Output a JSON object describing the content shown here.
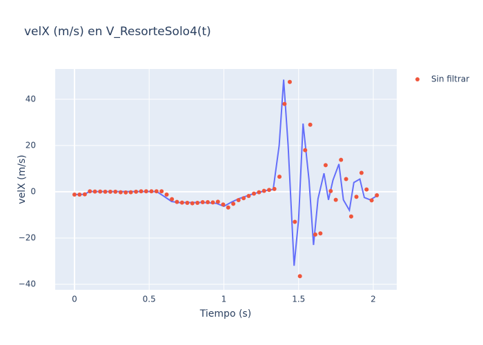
{
  "chart_data": {
    "type": "scatter",
    "title": "velX (m/s) en V_ResorteSolo4(t)",
    "x_label": "Tiempo (s)",
    "y_label": "velX (m/s)",
    "xlim": [
      -0.129,
      2.157
    ],
    "ylim": [
      -42.4,
      53.1
    ],
    "xticks": [
      0,
      0.5,
      1,
      1.5,
      2
    ],
    "yticks": [
      {
        "value": -40,
        "label": "−40"
      },
      {
        "value": -20,
        "label": "−20"
      },
      0,
      20,
      40
    ],
    "grid": true,
    "legend": "right",
    "series": [
      {
        "mode": "lines",
        "color": "#636efa",
        "x": [
          0,
          0.067,
          0.1,
          0.5,
          0.55,
          0.6,
          0.65,
          0.7,
          0.85,
          0.95,
          1.0,
          1.05,
          1.1,
          1.2,
          1.3,
          1.33,
          1.37,
          1.4,
          1.43,
          1.47,
          1.5,
          1.53,
          1.57,
          1.6,
          1.63,
          1.67,
          1.7,
          1.73,
          1.77,
          1.8,
          1.84,
          1.87,
          1.91,
          1.94,
          1.98,
          2.03
        ],
        "values": [
          -1.2,
          -1.1,
          0.1,
          0.1,
          0.1,
          -2,
          -4.2,
          -4.7,
          -4.6,
          -5,
          -6.3,
          -4.5,
          -3,
          -0.8,
          0.8,
          1,
          20,
          48.5,
          20,
          -32,
          -12,
          29.5,
          5,
          -23,
          -3,
          8,
          -3.5,
          5,
          12,
          -3.5,
          -8,
          4,
          5.5,
          -2.5,
          -3.5,
          -1.5
        ]
      },
      {
        "mode": "markers",
        "name": "Sin filtrar",
        "color": "#ef553b",
        "x": [
          0,
          0.034,
          0.069,
          0.103,
          0.137,
          0.172,
          0.206,
          0.24,
          0.274,
          0.309,
          0.343,
          0.377,
          0.412,
          0.446,
          0.48,
          0.515,
          0.549,
          0.583,
          0.617,
          0.652,
          0.686,
          0.72,
          0.755,
          0.789,
          0.823,
          0.858,
          0.892,
          0.926,
          0.96,
          0.995,
          1.029,
          1.063,
          1.098,
          1.132,
          1.166,
          1.201,
          1.235,
          1.269,
          1.303,
          1.338,
          1.372,
          1.406,
          1.441,
          1.475,
          1.509,
          1.544,
          1.578,
          1.612,
          1.646,
          1.681,
          1.715,
          1.749,
          1.784,
          1.818,
          1.852,
          1.887,
          1.921,
          1.955,
          1.989,
          2.024
        ],
        "values": [
          -1.2,
          -1.2,
          -1.1,
          0.2,
          0.1,
          0.1,
          0,
          0,
          0,
          -0.2,
          -0.3,
          -0.2,
          0,
          0.2,
          0.2,
          0.2,
          0.2,
          0.2,
          -1.2,
          -3.2,
          -4.4,
          -4.7,
          -4.8,
          -5,
          -4.8,
          -4.5,
          -4.5,
          -4.6,
          -4.3,
          -5.5,
          -6.8,
          -5.2,
          -3.6,
          -2.8,
          -1.8,
          -0.8,
          -0.2,
          0.4,
          0.8,
          1.2,
          6.5,
          38,
          47.5,
          -13,
          -36.5,
          18,
          29,
          -18.5,
          -18,
          11.5,
          0.3,
          -3.5,
          13.8,
          5.5,
          -10.7,
          -2.2,
          8.2,
          1,
          -3.7,
          -1.5
        ]
      }
    ]
  }
}
